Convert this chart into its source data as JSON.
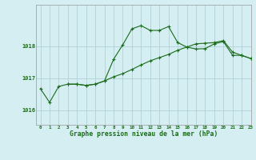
{
  "title": "Graphe pression niveau de la mer (hPa)",
  "background_color": "#d4eef2",
  "grid_color": "#b0d0d8",
  "line_color": "#1a6b1a",
  "xmin": -0.5,
  "xmax": 23,
  "ymin": 1015.55,
  "ymax": 1019.3,
  "yticks": [
    1016,
    1017,
    1018
  ],
  "xticks": [
    0,
    1,
    2,
    3,
    4,
    5,
    6,
    7,
    8,
    9,
    10,
    11,
    12,
    13,
    14,
    15,
    16,
    17,
    18,
    19,
    20,
    21,
    22,
    23
  ],
  "series1_x": [
    0,
    1,
    2,
    3,
    4,
    5,
    6,
    7,
    8,
    9,
    10,
    11,
    12,
    13,
    14,
    15,
    16,
    17,
    18,
    19,
    20,
    21,
    22,
    23
  ],
  "series1_y": [
    1016.68,
    1016.25,
    1016.75,
    1016.82,
    1016.82,
    1016.78,
    1016.82,
    1016.92,
    1017.6,
    1018.05,
    1018.55,
    1018.65,
    1018.5,
    1018.5,
    1018.62,
    1018.12,
    1017.98,
    1017.92,
    1017.93,
    1018.08,
    1018.15,
    1017.72,
    1017.72,
    1017.62
  ],
  "series2_x": [
    3,
    4,
    5,
    6,
    7,
    8,
    9,
    10,
    11,
    12,
    13,
    14,
    15,
    16,
    17,
    18,
    19,
    20,
    21,
    22,
    23
  ],
  "series2_y": [
    1016.82,
    1016.82,
    1016.78,
    1016.82,
    1016.92,
    1017.05,
    1017.15,
    1017.28,
    1017.42,
    1017.55,
    1017.65,
    1017.75,
    1017.88,
    1017.98,
    1018.08,
    1018.1,
    1018.12,
    1018.18,
    1017.82,
    1017.72,
    1017.62
  ]
}
